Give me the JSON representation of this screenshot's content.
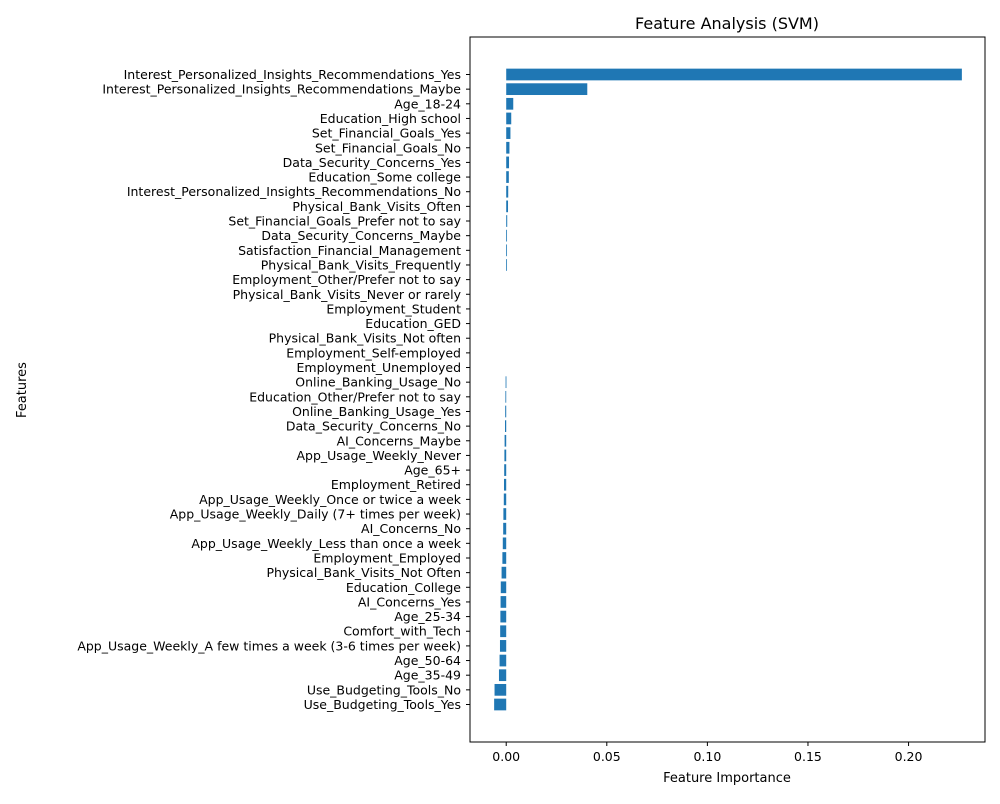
{
  "chart_data": {
    "type": "bar",
    "orientation": "horizontal",
    "title": "Feature Analysis (SVM)",
    "xlabel": "Feature Importance",
    "ylabel": "Features",
    "xlim": [
      -0.018,
      0.238
    ],
    "xticks": [
      0.0,
      0.05,
      0.1,
      0.15,
      0.2
    ],
    "xtick_labels": [
      "0.00",
      "0.05",
      "0.10",
      "0.15",
      "0.20"
    ],
    "grid": false,
    "bar_color": "#1f77b4",
    "categories": [
      "Interest_Personalized_Insights_Recommendations_Yes",
      "Interest_Personalized_Insights_Recommendations_Maybe",
      "Age_18-24",
      "Education_High school",
      "Set_Financial_Goals_Yes",
      "Set_Financial_Goals_No",
      "Data_Security_Concerns_Yes",
      "Education_Some college",
      "Interest_Personalized_Insights_Recommendations_No",
      "Physical_Bank_Visits_Often",
      "Set_Financial_Goals_Prefer not to say",
      "Data_Security_Concerns_Maybe",
      "Satisfaction_Financial_Management",
      "Physical_Bank_Visits_Frequently",
      "Employment_Other/Prefer not to say",
      "Physical_Bank_Visits_Never or rarely",
      "Employment_Student",
      "Education_GED",
      "Physical_Bank_Visits_Not often",
      "Employment_Self-employed",
      "Employment_Unemployed",
      "Online_Banking_Usage_No",
      "Education_Other/Prefer not to say",
      "Online_Banking_Usage_Yes",
      "Data_Security_Concerns_No",
      "AI_Concerns_Maybe",
      "App_Usage_Weekly_Never",
      "Age_65+",
      "Employment_Retired",
      "App_Usage_Weekly_Once or twice a week",
      "App_Usage_Weekly_Daily (7+ times per week)",
      "AI_Concerns_No",
      "App_Usage_Weekly_Less than once a week",
      "Employment_Employed",
      "Physical_Bank_Visits_Not Often",
      "Education_College",
      "AI_Concerns_Yes",
      "Age_25-34",
      "Comfort_with_Tech",
      "App_Usage_Weekly_A few times a week (3-6 times per week)",
      "Age_50-64",
      "Age_35-49",
      "Use_Budgeting_Tools_No",
      "Use_Budgeting_Tools_Yes"
    ],
    "values": [
      0.2265,
      0.0403,
      0.0035,
      0.0025,
      0.0021,
      0.0016,
      0.0014,
      0.0013,
      0.001,
      0.0009,
      0.0005,
      0.0004,
      0.0003,
      0.0002,
      0.0,
      0.0,
      0.0,
      0.0,
      0.0,
      0.0,
      0.0,
      -0.0003,
      -0.0004,
      -0.0005,
      -0.0006,
      -0.0008,
      -0.0009,
      -0.001,
      -0.0011,
      -0.0012,
      -0.0014,
      -0.0015,
      -0.0017,
      -0.0019,
      -0.0023,
      -0.0027,
      -0.0028,
      -0.0029,
      -0.003,
      -0.0031,
      -0.0033,
      -0.0036,
      -0.0058,
      -0.006
    ]
  }
}
